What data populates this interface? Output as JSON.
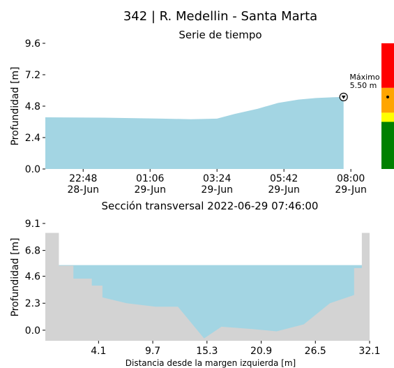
{
  "title": "342 | R. Medellin - Santa Marta",
  "chart_data": [
    {
      "type": "area",
      "title": "Serie de tiempo",
      "xlabel": "",
      "ylabel": "Profundidad [m]",
      "yticks": [
        "0.0",
        "2.4",
        "4.8",
        "7.2",
        "9.6"
      ],
      "ylim": [
        0,
        9.6
      ],
      "x_range_hours": [
        -10.5,
        0.5
      ],
      "xticks": [
        {
          "h": -9.2,
          "time": "22:48",
          "date": "28-Jun"
        },
        {
          "h": -6.9,
          "time": "01:06",
          "date": "29-Jun"
        },
        {
          "h": -4.6,
          "time": "03:24",
          "date": "29-Jun"
        },
        {
          "h": -2.3,
          "time": "05:42",
          "date": "29-Jun"
        },
        {
          "h": 0.0,
          "time": "08:00",
          "date": "29-Jun"
        }
      ],
      "x": [
        -10.5,
        -8.5,
        -6.5,
        -5.5,
        -4.6,
        -4.0,
        -3.2,
        -2.5,
        -1.8,
        -1.2,
        -0.6,
        -0.25
      ],
      "values": [
        3.95,
        3.92,
        3.85,
        3.8,
        3.85,
        4.2,
        4.6,
        5.05,
        5.3,
        5.42,
        5.48,
        5.5
      ],
      "max_annotation": {
        "label": "Máximo",
        "value_text": "5.50 m",
        "h": -0.25,
        "value": 5.5
      },
      "alert_bar": [
        {
          "from": 0.0,
          "to": 3.6,
          "color": "#008000"
        },
        {
          "from": 3.6,
          "to": 4.3,
          "color": "#ffff00"
        },
        {
          "from": 4.3,
          "to": 6.2,
          "color": "#ffa500"
        },
        {
          "from": 6.2,
          "to": 9.6,
          "color": "#ff0000"
        }
      ],
      "current_marker_value": 5.5,
      "colors": {
        "fill": "#a3d5e3",
        "axis": "#000000"
      }
    },
    {
      "type": "area",
      "title": "Sección transversal 2022-06-29 07:46:00",
      "xlabel": "Distancia desde la margen izquierda [m]",
      "ylabel": "Profundidad [m]",
      "yticks": [
        "0.0",
        "2.3",
        "4.6",
        "6.8",
        "9.1"
      ],
      "ylim": [
        -0.9,
        9.1
      ],
      "xticks": [
        "4.1",
        "9.7",
        "15.3",
        "20.9",
        "26.5",
        "32.1"
      ],
      "xlim": [
        -1.4,
        32.1
      ],
      "water_level": 5.55,
      "bed_x": [
        0.0,
        0.0,
        1.5,
        1.5,
        3.4,
        3.4,
        4.5,
        4.5,
        7.0,
        10.0,
        12.3,
        15.0,
        16.8,
        20.0,
        22.5,
        25.3,
        28.0,
        30.5,
        30.5,
        31.3,
        31.3,
        32.1
      ],
      "bed_y": [
        8.3,
        5.5,
        5.5,
        4.4,
        4.4,
        3.8,
        3.8,
        2.8,
        2.3,
        2.0,
        2.0,
        -0.7,
        0.3,
        0.1,
        -0.1,
        0.5,
        2.3,
        3.0,
        5.3,
        5.3,
        8.3,
        8.3
      ],
      "colors": {
        "water": "#a3d5e3",
        "bed": "#d3d3d3"
      }
    }
  ]
}
